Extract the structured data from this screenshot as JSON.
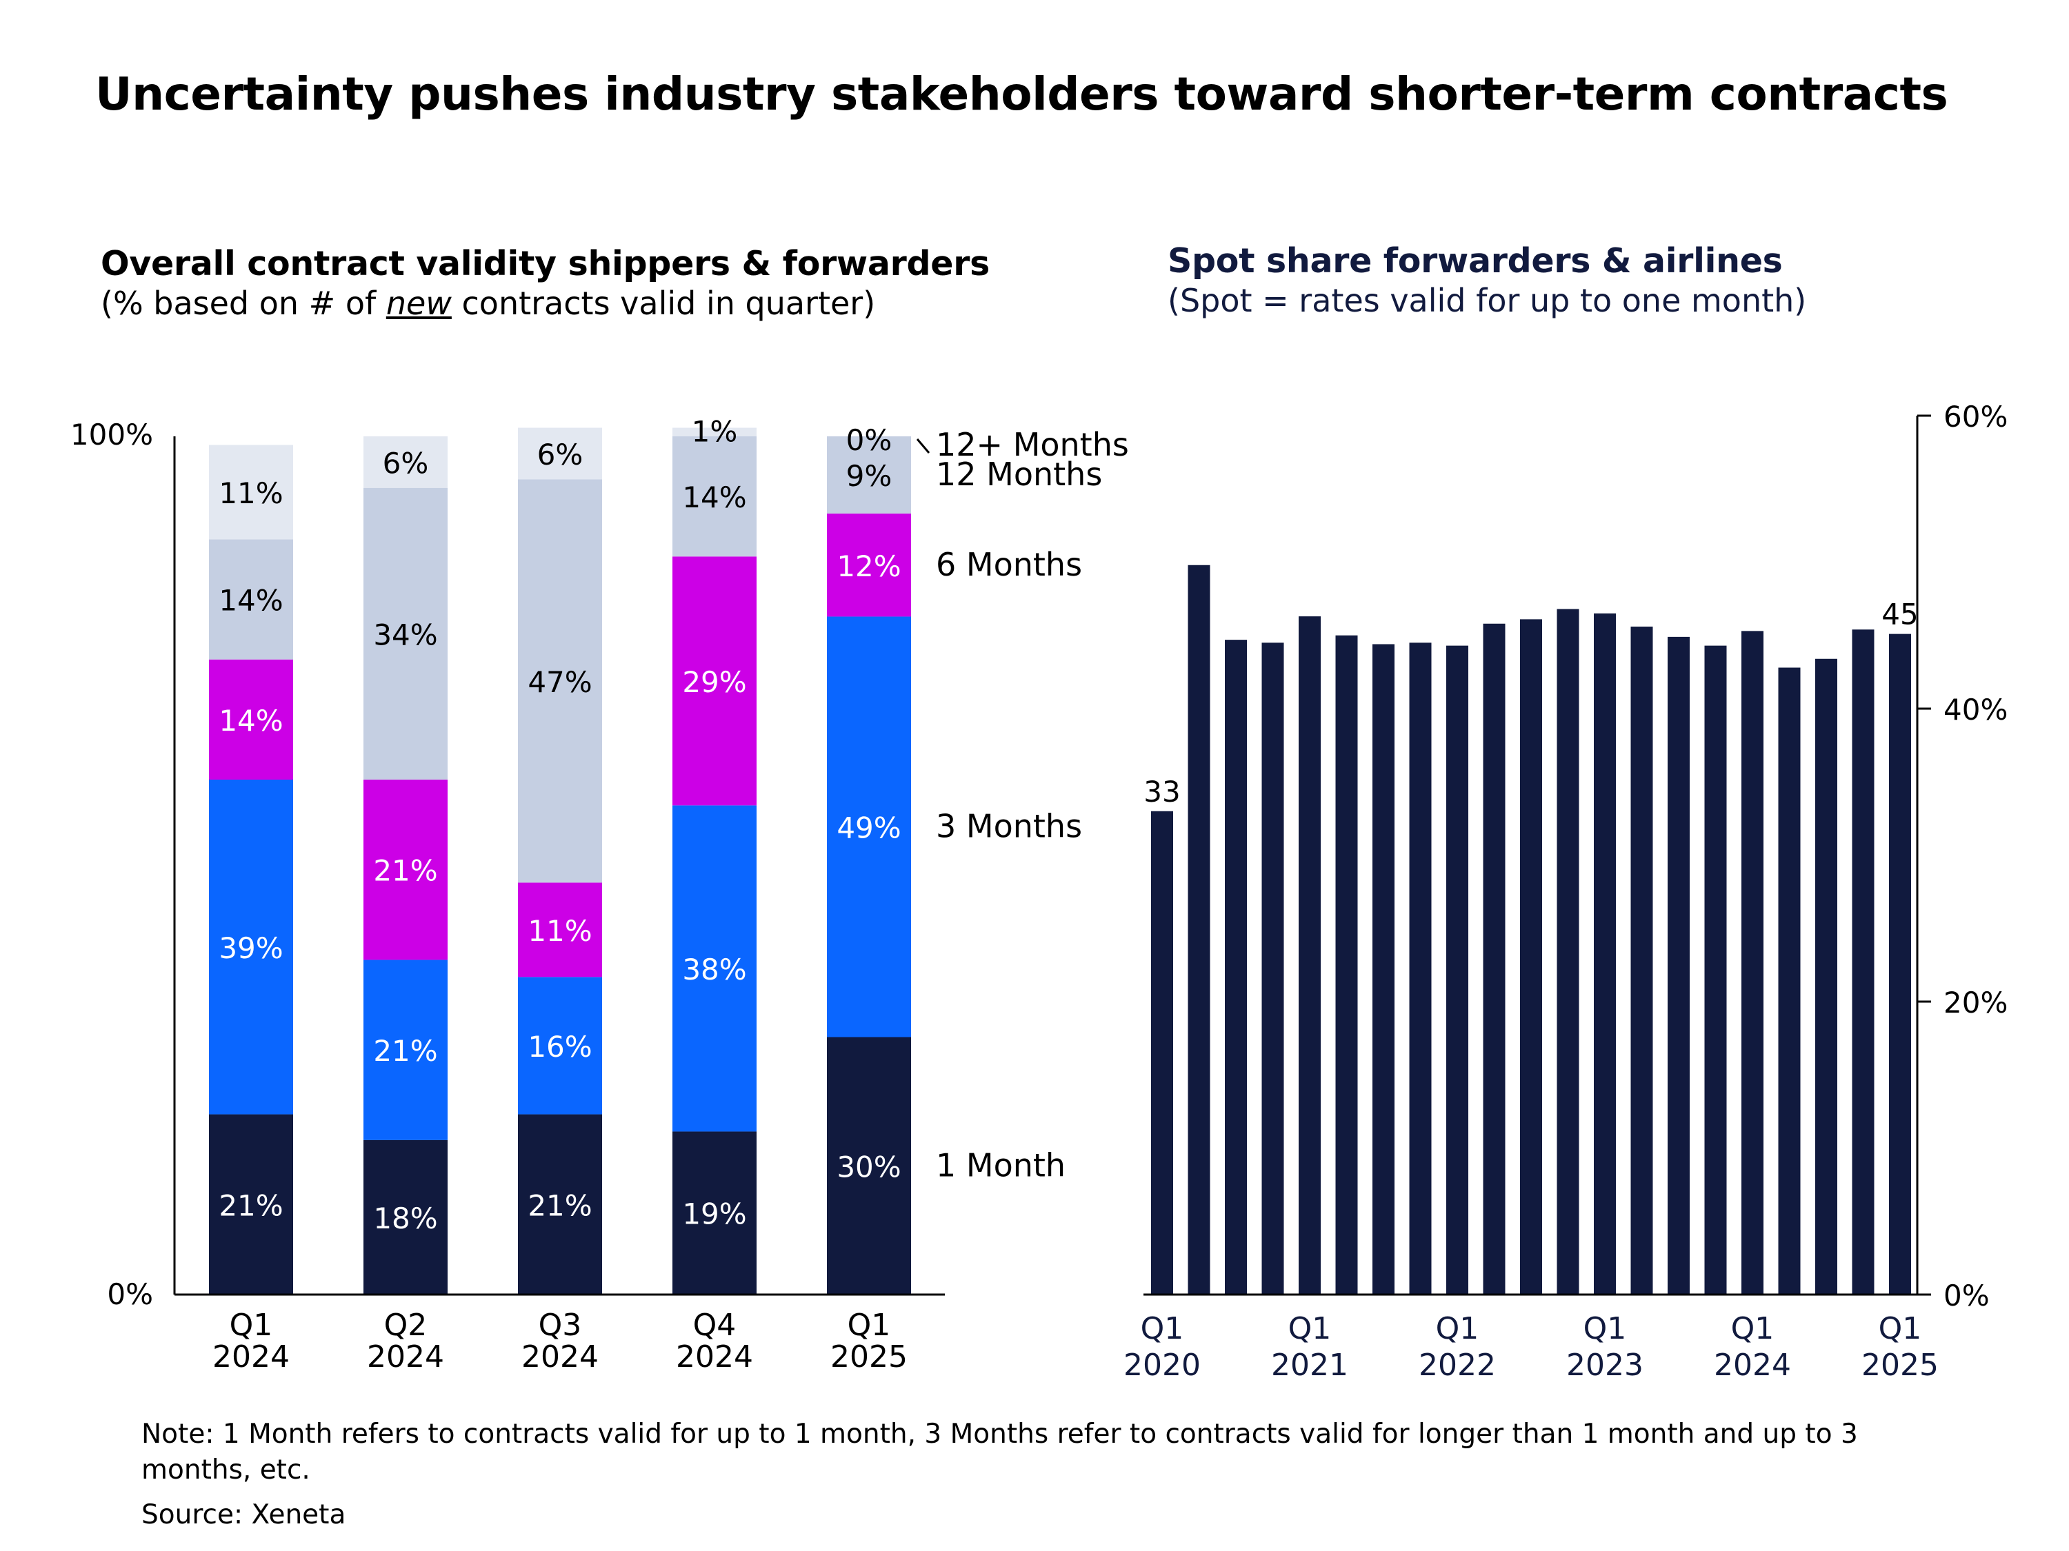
{
  "title": "Uncertainty pushes industry stakeholders toward shorter-term contracts",
  "left_panel": {
    "heading": "Overall contract validity shippers & forwarders",
    "subheading_pre": "(% based on # of ",
    "subheading_em": "new",
    "subheading_post": " contracts valid in quarter)"
  },
  "right_panel": {
    "heading": "Spot share forwarders & airlines",
    "subheading": "(Spot = rates valid for up to one month)"
  },
  "note": "Note: 1 Month refers to contracts valid for up to 1 month, 3 Months refer to contracts valid for longer than 1 month and up to 3 months, etc.",
  "source": "Source: Xeneta",
  "colors": {
    "one_month": "#111a3e",
    "three_months": "#0a66ff",
    "six_months": "#cc00e6",
    "twelve_months": "#c5cfe2",
    "twelve_plus": "#e3e8f1",
    "spot_bar": "#111a3e"
  },
  "chart_data": [
    {
      "type": "bar",
      "stacked": true,
      "title": "Overall contract validity shippers & forwarders",
      "categories": [
        {
          "q": "Q1",
          "year": "2024"
        },
        {
          "q": "Q2",
          "year": "2024"
        },
        {
          "q": "Q3",
          "year": "2024"
        },
        {
          "q": "Q4",
          "year": "2024"
        },
        {
          "q": "Q1",
          "year": "2025"
        }
      ],
      "series": [
        {
          "name": "1 Month",
          "color_key": "one_month",
          "text_color": "#ffffff",
          "values": [
            21,
            18,
            21,
            19,
            30
          ],
          "labels": [
            "21%",
            "18%",
            "21%",
            "19%",
            "30%"
          ]
        },
        {
          "name": "3 Months",
          "color_key": "three_months",
          "text_color": "#ffffff",
          "values": [
            39,
            21,
            16,
            38,
            49
          ],
          "labels": [
            "39%",
            "21%",
            "16%",
            "38%",
            "49%"
          ]
        },
        {
          "name": "6 Months",
          "color_key": "six_months",
          "text_color": "#ffffff",
          "values": [
            14,
            21,
            11,
            29,
            12
          ],
          "labels": [
            "14%",
            "21%",
            "11%",
            "29%",
            "12%"
          ]
        },
        {
          "name": "12 Months",
          "color_key": "twelve_months",
          "text_color": "#000000",
          "values": [
            14,
            34,
            47,
            14,
            9
          ],
          "labels": [
            "14%",
            "34%",
            "47%",
            "14%",
            "9%"
          ]
        },
        {
          "name": "12+ Months",
          "color_key": "twelve_plus",
          "text_color": "#000000",
          "values": [
            11,
            6,
            6,
            1,
            0
          ],
          "labels": [
            "11%",
            "6%",
            "6%",
            "1%",
            "0%"
          ]
        }
      ],
      "y_tick_labels": [
        "0%",
        "100%"
      ],
      "ylim": [
        0,
        100
      ],
      "legend_position": "right"
    },
    {
      "type": "bar",
      "title": "Spot share forwarders & airlines",
      "values": [
        33,
        49.8,
        44.7,
        44.5,
        46.3,
        45.0,
        44.4,
        44.5,
        44.3,
        45.8,
        46.1,
        46.8,
        46.5,
        45.6,
        44.9,
        44.3,
        45.3,
        42.8,
        43.4,
        45.4,
        45.1
      ],
      "data_labels": [
        {
          "index": 0,
          "text": "33"
        },
        {
          "index": 20,
          "text": "45"
        }
      ],
      "x_tick_labels": [
        {
          "index": 0,
          "q": "Q1",
          "year": "2020"
        },
        {
          "index": 4,
          "q": "Q1",
          "year": "2021"
        },
        {
          "index": 8,
          "q": "Q1",
          "year": "2022"
        },
        {
          "index": 12,
          "q": "Q1",
          "year": "2023"
        },
        {
          "index": 16,
          "q": "Q1",
          "year": "2024"
        },
        {
          "index": 20,
          "q": "Q1",
          "year": "2025"
        }
      ],
      "y_ticks": [
        {
          "value": 0,
          "label": "0%"
        },
        {
          "value": 20,
          "label": "20%"
        },
        {
          "value": 40,
          "label": "40%"
        },
        {
          "value": 60,
          "label": "60%"
        }
      ],
      "ylim": [
        0,
        60
      ],
      "y_axis_side": "right"
    }
  ]
}
